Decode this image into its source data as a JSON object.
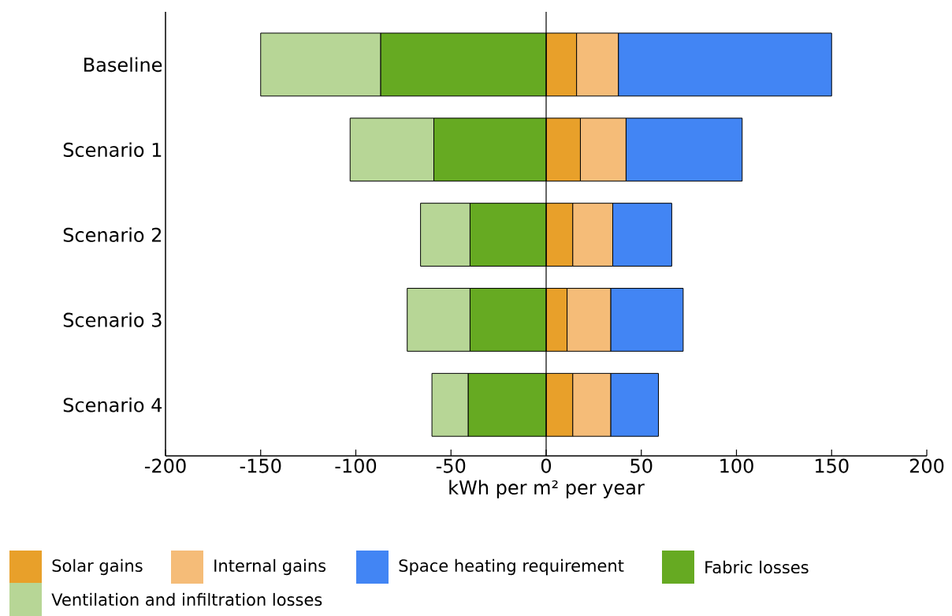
{
  "chart_data": {
    "type": "bar",
    "orientation": "horizontal",
    "stacked": true,
    "xlabel": "kWh per m² per year",
    "categories": [
      "Baseline",
      "Scenario 1",
      "Scenario 2",
      "Scenario 3",
      "Scenario 4"
    ],
    "series": [
      {
        "name": "Solar gains",
        "color": "#e8a02a",
        "values": [
          16,
          18,
          14,
          11,
          14
        ]
      },
      {
        "name": "Internal gains",
        "color": "#f5bc78",
        "values": [
          22,
          24,
          21,
          23,
          20
        ]
      },
      {
        "name": "Space heating requirement",
        "color": "#4285f4",
        "values": [
          112,
          61,
          31,
          38,
          25
        ]
      },
      {
        "name": "Fabric losses",
        "color": "#66aa22",
        "values": [
          -87,
          -59,
          -40,
          -40,
          -41
        ]
      },
      {
        "name": "Ventilation and infiltration losses",
        "color": "#b7d696",
        "values": [
          -63,
          -44,
          -26,
          -33,
          -19
        ]
      }
    ],
    "xlim": [
      -200,
      200
    ],
    "xticks": [
      -200,
      -150,
      -100,
      -50,
      0,
      50,
      100,
      150,
      200
    ],
    "ref_lines": [
      {
        "axis": "x",
        "value": 0
      }
    ],
    "grid": false,
    "legend": "bottom"
  }
}
